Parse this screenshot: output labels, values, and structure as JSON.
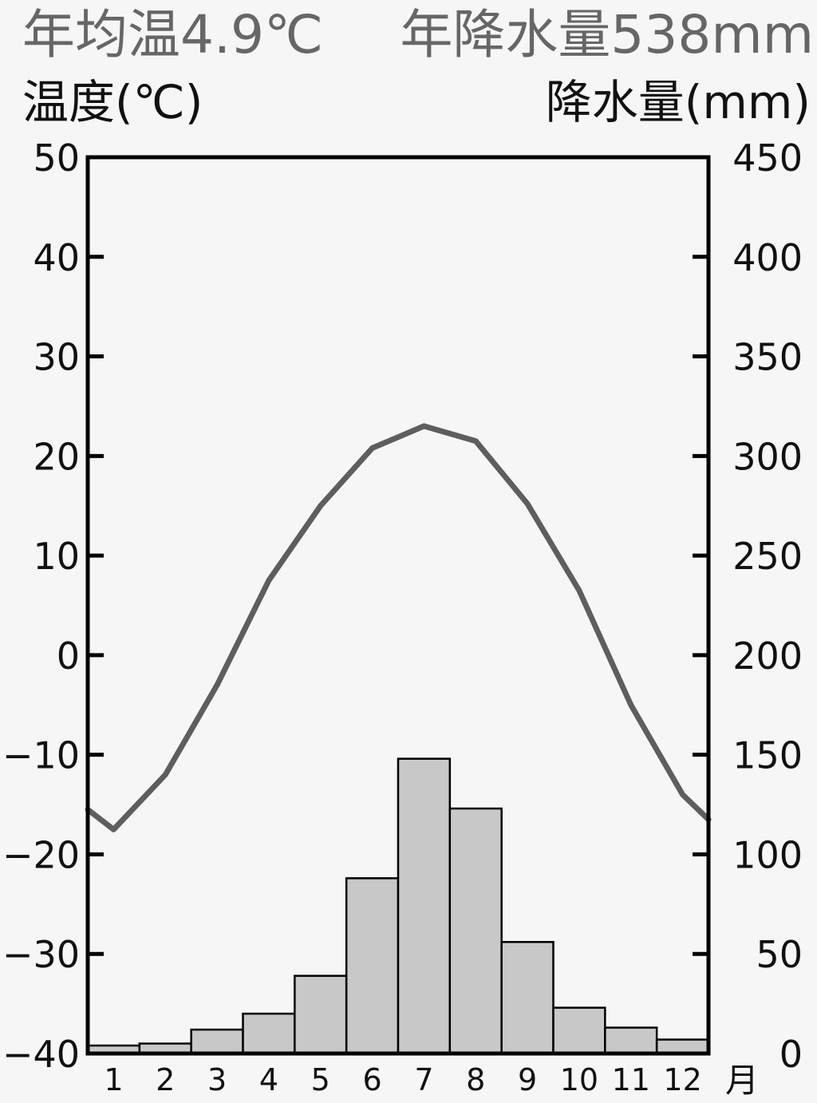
{
  "header": {
    "annual_temp": "年均温4.9℃",
    "annual_precip": "年降水量538mm",
    "left_axis_title": "温度(℃)",
    "right_axis_title": "降水量(mm)",
    "month_unit": "月"
  },
  "colors": {
    "background": "#f6f6f6",
    "temp_line": "#5e5e5e",
    "bar_fill": "#c8c8c8",
    "bar_stroke": "#000000",
    "axis": "#000000",
    "header_gray": "#666666"
  },
  "chart_data": {
    "type": "bar",
    "categories": [
      "1",
      "2",
      "3",
      "4",
      "5",
      "6",
      "7",
      "8",
      "9",
      "10",
      "11",
      "12"
    ],
    "series": [
      {
        "type": "line",
        "axis": "left",
        "values": [
          -17.5,
          -12.0,
          -3.0,
          7.5,
          15.0,
          20.8,
          23.0,
          21.5,
          15.2,
          6.5,
          -5.0,
          -14.0
        ]
      },
      {
        "type": "bar",
        "axis": "right",
        "values": [
          4,
          5,
          12,
          20,
          39,
          88,
          148,
          123,
          56,
          23,
          13,
          7
        ]
      }
    ],
    "edge_values": {
      "start": -15.5,
      "end": -16.5
    },
    "left_axis": {
      "min": -40,
      "max": 50,
      "ticks": [
        50,
        40,
        30,
        20,
        10,
        0,
        -10,
        -20,
        -30,
        -40
      ]
    },
    "right_axis": {
      "min": 0,
      "max": 450,
      "ticks": [
        450,
        400,
        350,
        300,
        250,
        200,
        150,
        100,
        50,
        0
      ]
    },
    "grid": false
  }
}
